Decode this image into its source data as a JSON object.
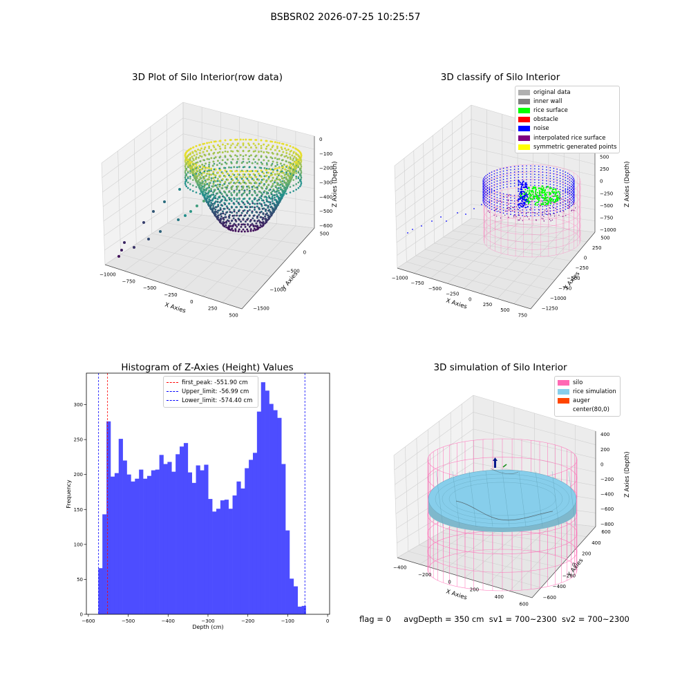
{
  "figure": {
    "title": "BSBSR02 2026-07-25 10:25:57",
    "status": {
      "flag": "flag = 0",
      "avg_depth": "avgDepth = 350 cm",
      "sv1": "sv1 = 700~2300",
      "sv2": "sv2 = 700~2300"
    }
  },
  "colors": {
    "viridis_low": "#440154",
    "viridis_mid": "#21918c",
    "viridis_high": "#fde725",
    "inner_wall": "#808080",
    "rice_surface": "#00ff00",
    "noise": "#0000ff",
    "interpolated": "#800080",
    "silo": "#ff69b4",
    "rice_simulation": "#87ceeb",
    "auger": "#ff4500",
    "histogram": "#4d4dff"
  },
  "chart_data": [
    {
      "type": "scatter",
      "projection": "3d",
      "title": "3D Plot of Silo Interior(row data)",
      "xlabel": "X Axies",
      "ylabel": "Y Axies",
      "zlabel": "Z Axies (Depth)",
      "x_ticks": [
        "−1000",
        "−750",
        "−500",
        "−250",
        "0",
        "250",
        "500"
      ],
      "y_ticks": [
        "500",
        "0",
        "−500",
        "−1000",
        "−1500"
      ],
      "z_ticks": [
        "0",
        "−100",
        "−200",
        "−300",
        "−400",
        "−500",
        "−600"
      ],
      "colormap": "viridis",
      "grid": true
    },
    {
      "type": "scatter",
      "projection": "3d",
      "title": "3D classify of Silo Interior",
      "xlabel": "X Axies",
      "ylabel": "Y Axies",
      "zlabel": "Z Axies (Depth)",
      "x_ticks": [
        "−1000",
        "−750",
        "−500",
        "−250",
        "0",
        "250",
        "500",
        "750"
      ],
      "y_ticks": [
        "500",
        "250",
        "0",
        "−250",
        "−500",
        "−750",
        "−1000",
        "−1250"
      ],
      "z_ticks": [
        "750",
        "500",
        "250",
        "0",
        "−250",
        "−500",
        "−750",
        "−1000"
      ],
      "legend_position": "top-right",
      "legend": [
        {
          "label": "original data",
          "color": "#b0b0b0"
        },
        {
          "label": "inner wall",
          "color": "#808080"
        },
        {
          "label": "rice surface",
          "color": "#00ff00"
        },
        {
          "label": "obstacle",
          "color": "#ff0000"
        },
        {
          "label": "noise",
          "color": "#0000ff"
        },
        {
          "label": "interpolated rice surface",
          "color": "#800080"
        },
        {
          "label": "symmetric generated points",
          "color": "#ffff00"
        }
      ],
      "grid": true
    },
    {
      "type": "bar",
      "title": "Histogram of Z-Axies (Height) Values",
      "xlabel": "Depth (cm)",
      "ylabel": "Frequency",
      "xlim": [
        -605,
        5
      ],
      "ylim": [
        0,
        345
      ],
      "x_ticks": [
        -600,
        -500,
        -400,
        -300,
        -200,
        -100,
        0
      ],
      "y_ticks": [
        0,
        50,
        100,
        150,
        200,
        250,
        300
      ],
      "bin_edges_start": -575,
      "bin_width": 10.2,
      "values": [
        66,
        143,
        276,
        197,
        202,
        251,
        220,
        200,
        190,
        194,
        207,
        194,
        198,
        206,
        207,
        228,
        215,
        218,
        204,
        229,
        240,
        245,
        203,
        188,
        213,
        206,
        214,
        165,
        147,
        151,
        163,
        164,
        151,
        170,
        190,
        180,
        209,
        221,
        231,
        290,
        332,
        320,
        301,
        292,
        281,
        215,
        120,
        51,
        40,
        11,
        12
      ],
      "vlines": [
        {
          "label": "first_peak: -551.90 cm",
          "x": -551.9,
          "color": "#ff0000"
        },
        {
          "label": "Upper_limit: -56.99 cm",
          "x": -56.99,
          "color": "#0000ff"
        },
        {
          "label": "Lower_limit: -574.40 cm",
          "x": -574.4,
          "color": "#0000ff"
        }
      ],
      "legend_position": "top-center",
      "grid": false
    },
    {
      "type": "surface",
      "projection": "3d",
      "title": "3D simulation of Silo Interior",
      "xlabel": "X Axies",
      "ylabel": "Y Axies",
      "zlabel": "Z Axies (Depth)",
      "x_ticks": [
        "−400",
        "−200",
        "0",
        "200",
        "400",
        "600"
      ],
      "y_ticks": [
        "600",
        "400",
        "200",
        "0",
        "−200",
        "−400",
        "−600"
      ],
      "z_ticks": [
        "400",
        "200",
        "0",
        "−200",
        "−400",
        "−600",
        "−800"
      ],
      "legend_position": "top-right",
      "legend": [
        {
          "label": "silo",
          "color": "#ff69b4"
        },
        {
          "label": "rice simulation",
          "color": "#87ceeb"
        },
        {
          "label": "auger",
          "color": "#ff4500"
        },
        {
          "label": "center(80,0)",
          "color": "#ffffff"
        }
      ],
      "grid": true
    }
  ]
}
